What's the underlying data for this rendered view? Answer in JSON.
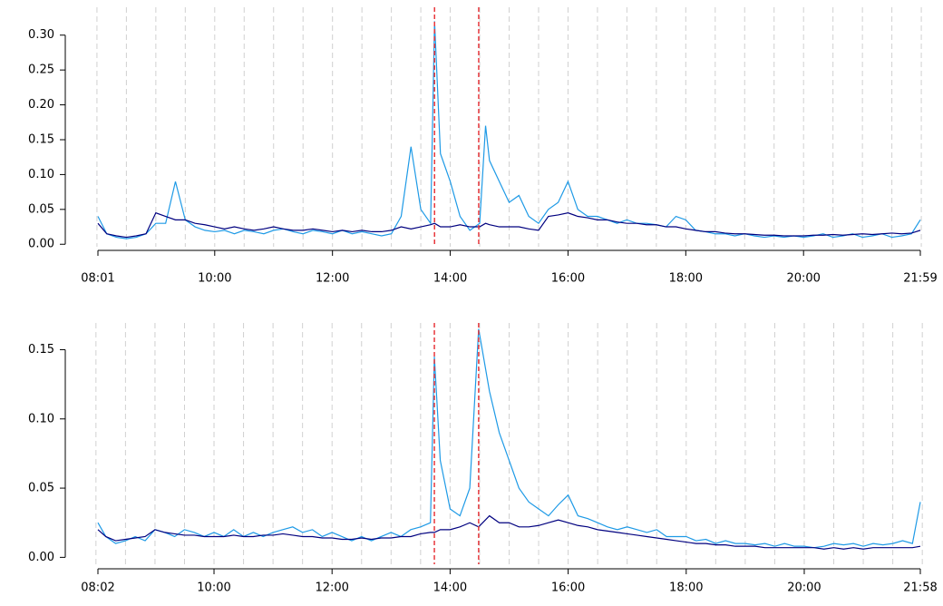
{
  "chart_data": [
    {
      "type": "line",
      "x": [
        "08:01",
        "08:10",
        "08:20",
        "08:30",
        "08:40",
        "08:50",
        "09:00",
        "09:10",
        "09:20",
        "09:30",
        "09:40",
        "09:50",
        "10:00",
        "10:10",
        "10:20",
        "10:30",
        "10:40",
        "10:50",
        "11:00",
        "11:10",
        "11:20",
        "11:30",
        "11:40",
        "11:50",
        "12:00",
        "12:10",
        "12:20",
        "12:30",
        "12:40",
        "12:50",
        "13:00",
        "13:10",
        "13:20",
        "13:30",
        "13:40",
        "13:44",
        "13:50",
        "14:00",
        "14:10",
        "14:20",
        "14:30",
        "14:36",
        "14:40",
        "14:50",
        "15:00",
        "15:10",
        "15:20",
        "15:30",
        "15:40",
        "15:50",
        "16:00",
        "16:10",
        "16:20",
        "16:30",
        "16:40",
        "16:50",
        "17:00",
        "17:10",
        "17:20",
        "17:30",
        "17:40",
        "17:50",
        "18:00",
        "18:10",
        "18:20",
        "18:30",
        "18:40",
        "18:50",
        "19:00",
        "19:10",
        "19:20",
        "19:30",
        "19:40",
        "19:50",
        "20:00",
        "20:10",
        "20:20",
        "20:30",
        "20:40",
        "20:50",
        "21:00",
        "21:10",
        "21:20",
        "21:30",
        "21:40",
        "21:50",
        "21:59"
      ],
      "series": [
        {
          "color": "#1e9ae6",
          "values": [
            0.04,
            0.015,
            0.01,
            0.008,
            0.01,
            0.015,
            0.03,
            0.03,
            0.09,
            0.035,
            0.025,
            0.02,
            0.018,
            0.02,
            0.015,
            0.02,
            0.018,
            0.015,
            0.02,
            0.022,
            0.018,
            0.015,
            0.02,
            0.018,
            0.015,
            0.02,
            0.015,
            0.018,
            0.015,
            0.012,
            0.015,
            0.04,
            0.14,
            0.05,
            0.03,
            0.32,
            0.13,
            0.09,
            0.04,
            0.02,
            0.03,
            0.17,
            0.12,
            0.09,
            0.06,
            0.07,
            0.04,
            0.03,
            0.05,
            0.06,
            0.09,
            0.05,
            0.04,
            0.04,
            0.035,
            0.03,
            0.035,
            0.03,
            0.03,
            0.028,
            0.025,
            0.04,
            0.035,
            0.02,
            0.018,
            0.015,
            0.015,
            0.012,
            0.015,
            0.012,
            0.01,
            0.012,
            0.01,
            0.012,
            0.01,
            0.012,
            0.015,
            0.01,
            0.012,
            0.015,
            0.01,
            0.012,
            0.015,
            0.01,
            0.012,
            0.015,
            0.035
          ]
        },
        {
          "color": "#00007f",
          "values": [
            0.03,
            0.015,
            0.012,
            0.01,
            0.012,
            0.015,
            0.045,
            0.04,
            0.035,
            0.035,
            0.03,
            0.028,
            0.025,
            0.022,
            0.025,
            0.022,
            0.02,
            0.022,
            0.025,
            0.022,
            0.02,
            0.02,
            0.022,
            0.02,
            0.018,
            0.02,
            0.018,
            0.02,
            0.018,
            0.018,
            0.02,
            0.025,
            0.022,
            0.025,
            0.028,
            0.03,
            0.025,
            0.025,
            0.028,
            0.025,
            0.025,
            0.03,
            0.028,
            0.025,
            0.025,
            0.025,
            0.022,
            0.02,
            0.04,
            0.042,
            0.045,
            0.04,
            0.038,
            0.035,
            0.035,
            0.032,
            0.03,
            0.03,
            0.028,
            0.028,
            0.025,
            0.025,
            0.022,
            0.02,
            0.018,
            0.018,
            0.016,
            0.015,
            0.015,
            0.014,
            0.013,
            0.013,
            0.012,
            0.012,
            0.012,
            0.013,
            0.013,
            0.014,
            0.013,
            0.014,
            0.015,
            0.014,
            0.015,
            0.016,
            0.015,
            0.016,
            0.02
          ]
        }
      ],
      "xlim": [
        "08:01",
        "21:59"
      ],
      "xticks": [
        "08:01",
        "10:00",
        "12:00",
        "14:00",
        "16:00",
        "18:00",
        "20:00",
        "21:59"
      ],
      "ylim": [
        -0.014,
        0.34
      ],
      "yticks": [
        {
          "value": 0,
          "label": "0.00"
        },
        {
          "value": 0.05,
          "label": "0.05"
        },
        {
          "value": 0.1,
          "label": "0.10"
        },
        {
          "value": 0.15,
          "label": "0.15"
        },
        {
          "value": 0.2,
          "label": "0.20"
        },
        {
          "value": 0.25,
          "label": "0.25"
        },
        {
          "value": 0.3,
          "label": "0.30"
        }
      ],
      "xgrid": [
        "08:00",
        "08:30",
        "09:00",
        "09:30",
        "10:00",
        "10:30",
        "11:00",
        "11:30",
        "12:00",
        "12:30",
        "13:00",
        "13:30",
        "14:00",
        "14:30",
        "15:00",
        "15:30",
        "16:00",
        "16:30",
        "17:00",
        "17:30",
        "18:00",
        "18:30",
        "19:00",
        "19:30",
        "20:00",
        "20:30",
        "21:00",
        "21:30",
        "22:00"
      ],
      "grid_color": "#d0d0d0",
      "vlines": [
        "13:44",
        "14:29"
      ],
      "vline_color": "#e8383d"
    },
    {
      "type": "line",
      "x": [
        "08:02",
        "08:10",
        "08:20",
        "08:30",
        "08:40",
        "08:50",
        "09:00",
        "09:10",
        "09:20",
        "09:30",
        "09:40",
        "09:50",
        "10:00",
        "10:10",
        "10:20",
        "10:30",
        "10:40",
        "10:50",
        "11:00",
        "11:10",
        "11:20",
        "11:30",
        "11:40",
        "11:50",
        "12:00",
        "12:10",
        "12:20",
        "12:30",
        "12:40",
        "12:50",
        "13:00",
        "13:10",
        "13:20",
        "13:30",
        "13:40",
        "13:44",
        "13:50",
        "14:00",
        "14:10",
        "14:20",
        "14:29",
        "14:40",
        "14:50",
        "15:00",
        "15:10",
        "15:20",
        "15:30",
        "15:40",
        "15:50",
        "16:00",
        "16:10",
        "16:20",
        "16:30",
        "16:40",
        "16:50",
        "17:00",
        "17:10",
        "17:20",
        "17:30",
        "17:40",
        "17:50",
        "18:00",
        "18:10",
        "18:20",
        "18:30",
        "18:40",
        "18:50",
        "19:00",
        "19:10",
        "19:20",
        "19:30",
        "19:40",
        "19:50",
        "20:00",
        "20:10",
        "20:20",
        "20:30",
        "20:40",
        "20:50",
        "21:00",
        "21:10",
        "21:20",
        "21:30",
        "21:40",
        "21:50",
        "21:58"
      ],
      "series": [
        {
          "color": "#1e9ae6",
          "values": [
            0.025,
            0.015,
            0.01,
            0.012,
            0.015,
            0.012,
            0.02,
            0.018,
            0.015,
            0.02,
            0.018,
            0.015,
            0.018,
            0.015,
            0.02,
            0.015,
            0.018,
            0.015,
            0.018,
            0.02,
            0.022,
            0.018,
            0.02,
            0.015,
            0.018,
            0.015,
            0.012,
            0.015,
            0.012,
            0.015,
            0.018,
            0.015,
            0.02,
            0.022,
            0.025,
            0.145,
            0.07,
            0.035,
            0.03,
            0.05,
            0.165,
            0.12,
            0.09,
            0.07,
            0.05,
            0.04,
            0.035,
            0.03,
            0.038,
            0.045,
            0.03,
            0.028,
            0.025,
            0.022,
            0.02,
            0.022,
            0.02,
            0.018,
            0.02,
            0.015,
            0.015,
            0.015,
            0.012,
            0.013,
            0.01,
            0.012,
            0.01,
            0.01,
            0.009,
            0.01,
            0.008,
            0.01,
            0.008,
            0.008,
            0.007,
            0.008,
            0.01,
            0.009,
            0.01,
            0.008,
            0.01,
            0.009,
            0.01,
            0.012,
            0.01,
            0.04
          ]
        },
        {
          "color": "#00007f",
          "values": [
            0.02,
            0.015,
            0.012,
            0.013,
            0.014,
            0.015,
            0.02,
            0.018,
            0.017,
            0.016,
            0.016,
            0.015,
            0.015,
            0.015,
            0.016,
            0.015,
            0.015,
            0.016,
            0.016,
            0.017,
            0.016,
            0.015,
            0.015,
            0.014,
            0.014,
            0.013,
            0.013,
            0.014,
            0.013,
            0.014,
            0.014,
            0.015,
            0.015,
            0.017,
            0.018,
            0.018,
            0.02,
            0.02,
            0.022,
            0.025,
            0.022,
            0.03,
            0.025,
            0.025,
            0.022,
            0.022,
            0.023,
            0.025,
            0.027,
            0.025,
            0.023,
            0.022,
            0.02,
            0.019,
            0.018,
            0.017,
            0.016,
            0.015,
            0.014,
            0.013,
            0.012,
            0.011,
            0.01,
            0.01,
            0.009,
            0.009,
            0.008,
            0.008,
            0.008,
            0.007,
            0.007,
            0.007,
            0.007,
            0.007,
            0.007,
            0.006,
            0.007,
            0.006,
            0.007,
            0.006,
            0.007,
            0.007,
            0.007,
            0.007,
            0.007,
            0.008
          ]
        }
      ],
      "xlim": [
        "08:02",
        "21:58"
      ],
      "xticks": [
        "08:02",
        "10:00",
        "12:00",
        "14:00",
        "16:00",
        "18:00",
        "20:00",
        "21:58"
      ],
      "ylim": [
        -0.005,
        0.168
      ],
      "yticks": [
        {
          "value": 0,
          "label": "0.00"
        },
        {
          "value": 0.05,
          "label": "0.05"
        },
        {
          "value": 0.1,
          "label": "0.10"
        },
        {
          "value": 0.15,
          "label": "0.15"
        }
      ],
      "xgrid": [
        "08:00",
        "08:30",
        "09:00",
        "09:30",
        "10:00",
        "10:30",
        "11:00",
        "11:30",
        "12:00",
        "12:30",
        "13:00",
        "13:30",
        "14:00",
        "14:30",
        "15:00",
        "15:30",
        "16:00",
        "16:30",
        "17:00",
        "17:30",
        "18:00",
        "18:30",
        "19:00",
        "19:30",
        "20:00",
        "20:30",
        "21:00",
        "21:30",
        "22:00"
      ],
      "grid_color": "#d0d0d0",
      "vlines": [
        "13:44",
        "14:29"
      ],
      "vline_color": "#e8383d"
    }
  ]
}
